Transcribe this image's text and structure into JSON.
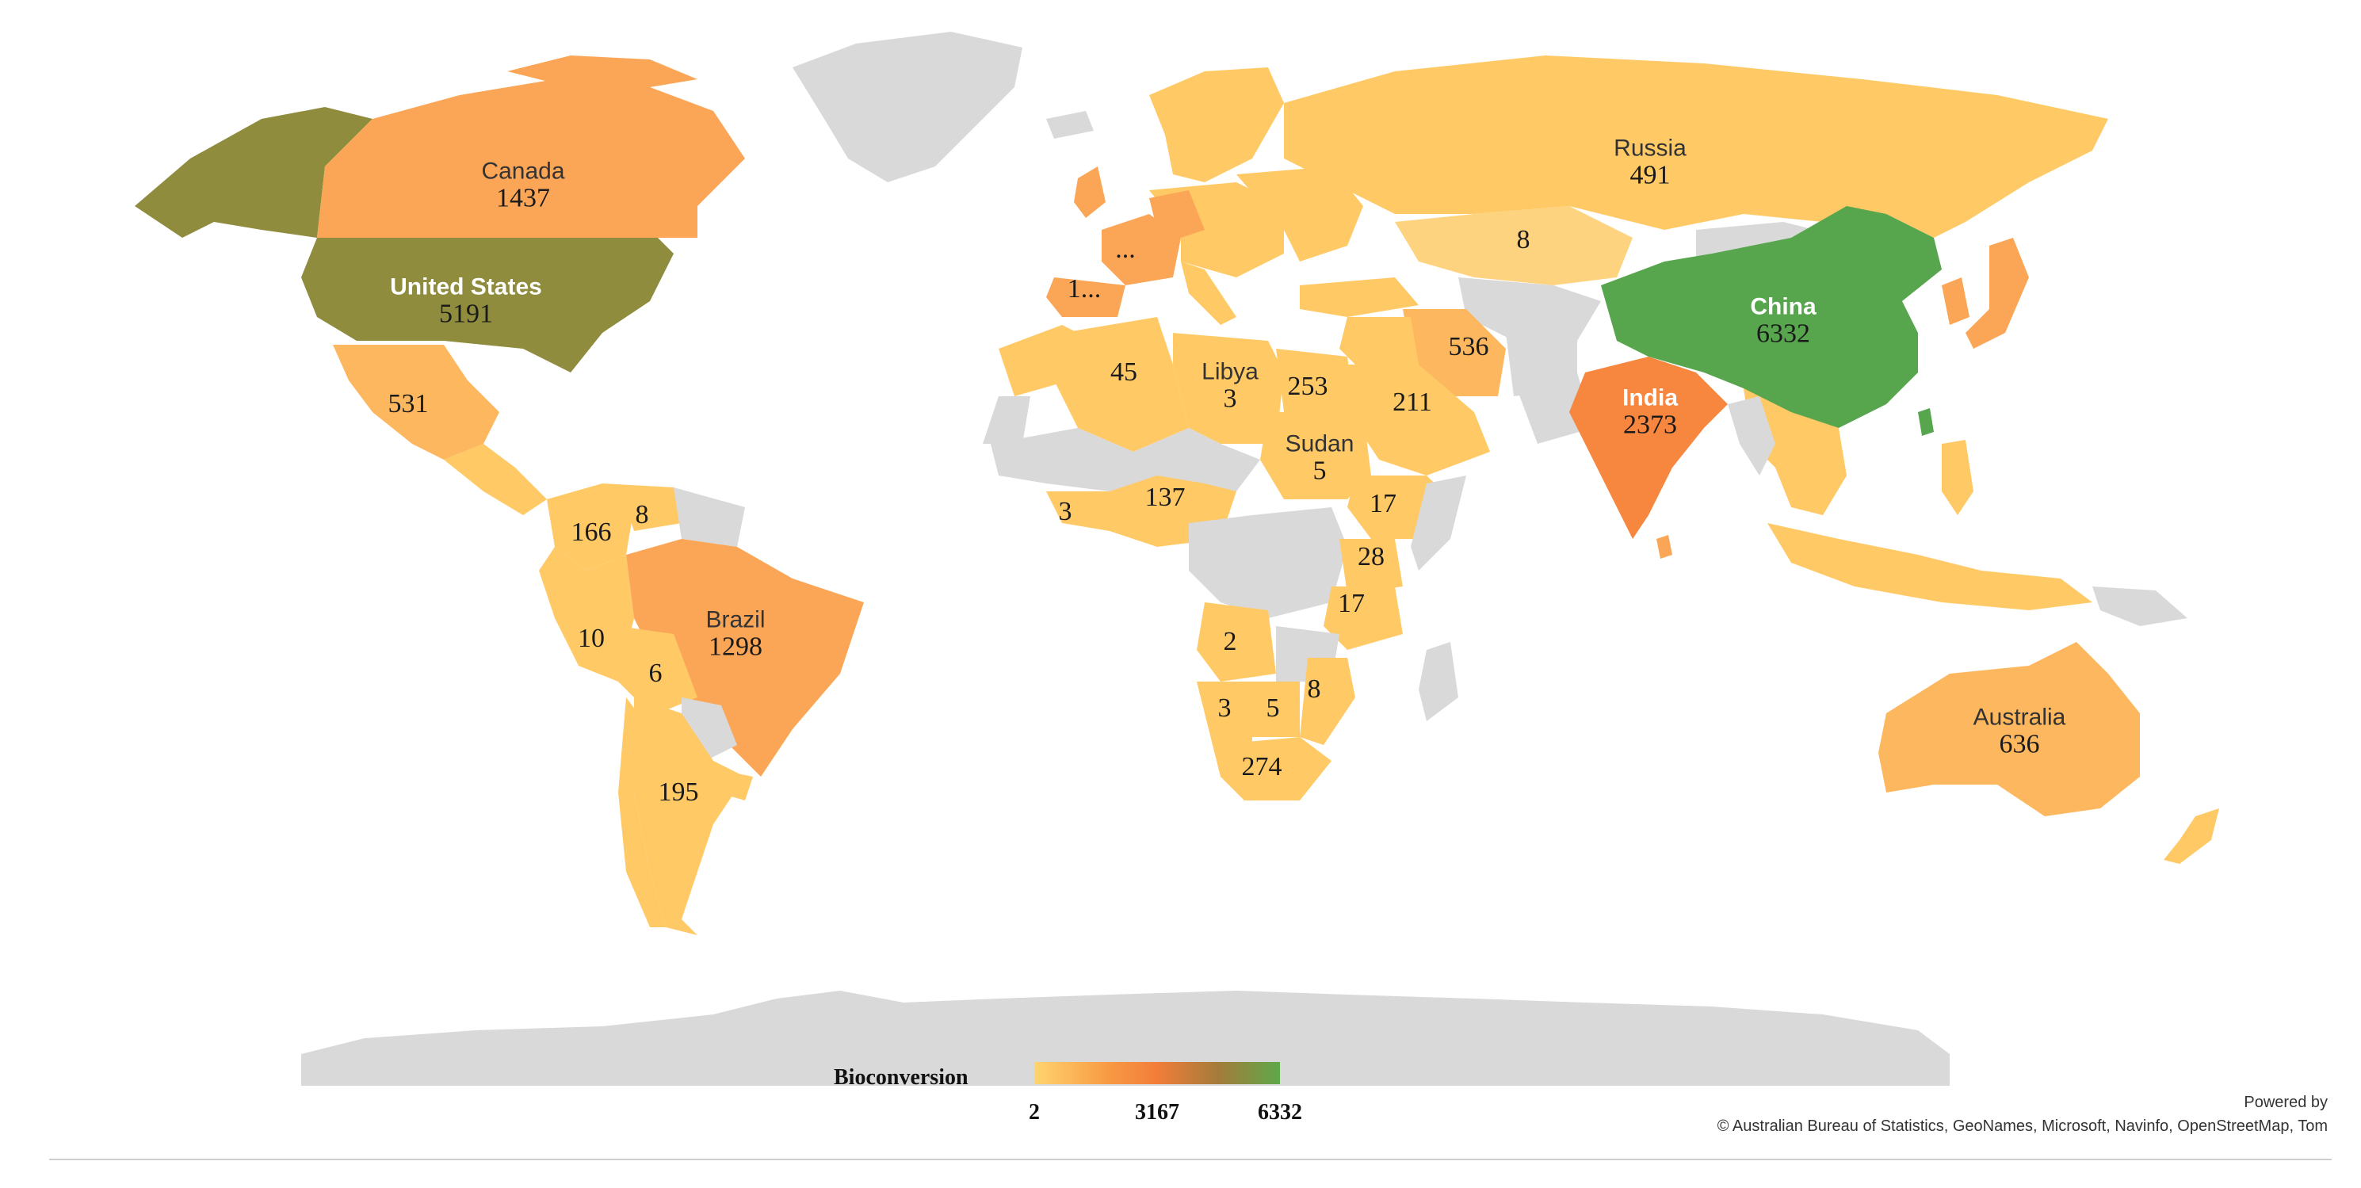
{
  "legend": {
    "title": "Bioconversion",
    "min_label": "2",
    "mid_label": "3167",
    "max_label": "6332",
    "colors": [
      "#ffd46e",
      "#f89a44",
      "#f27d3a",
      "#a37c3a",
      "#5fa84a"
    ]
  },
  "attribution": {
    "powered_by": "Powered by",
    "credits": "© Australian Bureau of Statistics, GeoNames, Microsoft, Navinfo, OpenStreetMap, Tom"
  },
  "colors": {
    "no_data": "#d9d9d9",
    "low": "#ffc966",
    "mid_low": "#fdb75e",
    "orange": "#fba657",
    "dark_orange": "#f7863f",
    "olive": "#8f8c3e",
    "green": "#57a64e"
  },
  "countries": {
    "canada": {
      "name": "Canada",
      "value": "1437"
    },
    "usa": {
      "name": "United States",
      "value": "5191"
    },
    "mexico": {
      "value": "531"
    },
    "russia": {
      "name": "Russia",
      "value": "491"
    },
    "kazakhstan": {
      "value": "8"
    },
    "china": {
      "name": "China",
      "value": "6332"
    },
    "india": {
      "name": "India",
      "value": "2373"
    },
    "iran": {
      "value": "536"
    },
    "saudi": {
      "value": "211"
    },
    "egypt": {
      "value": "253"
    },
    "libya": {
      "name": "Libya",
      "value": "3"
    },
    "algeria": {
      "value": "45"
    },
    "sudan": {
      "name": "Sudan",
      "value": "5"
    },
    "ethiopia": {
      "value": "17"
    },
    "kenya": {
      "value": "28"
    },
    "tanzania": {
      "value": "17"
    },
    "nigeria": {
      "value": "137"
    },
    "ghana": {
      "value": "3"
    },
    "angola": {
      "value": "2"
    },
    "namibia": {
      "value": "3"
    },
    "botswana": {
      "value": "5"
    },
    "mozambique": {
      "value": "8"
    },
    "south_africa": {
      "value": "274"
    },
    "spain": {
      "value": "1..."
    },
    "france": {
      "value": "..."
    },
    "colombia": {
      "value": "166"
    },
    "venezuela": {
      "value": "8"
    },
    "peru": {
      "value": "10"
    },
    "bolivia": {
      "value": "6"
    },
    "argentina": {
      "value": "195"
    },
    "brazil": {
      "name": "Brazil",
      "value": "1298"
    },
    "australia": {
      "name": "Australia",
      "value": "636"
    }
  }
}
